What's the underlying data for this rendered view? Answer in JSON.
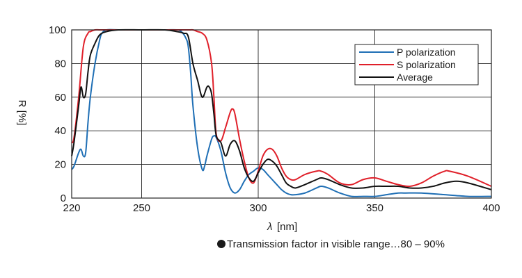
{
  "chart_data": {
    "type": "line",
    "xlabel_symbol": "λ",
    "xlabel_unit": "[nm]",
    "ylabel": "R [%]",
    "xlim": [
      220,
      400
    ],
    "ylim": [
      0,
      100
    ],
    "xticks": [
      220,
      250,
      300,
      350,
      400
    ],
    "yticks": [
      0,
      20,
      40,
      60,
      80,
      100
    ],
    "grid": true,
    "legend_position": "top-right",
    "colors": {
      "P polarization": "#1f6fb5",
      "S polarization": "#e0202a",
      "Average": "#111111",
      "grid": "#222222"
    },
    "series": [
      {
        "name": "P polarization",
        "x": [
          220,
          221,
          223,
          224,
          225,
          226,
          227,
          228,
          230,
          232,
          233,
          235,
          240,
          250,
          260,
          265,
          267,
          269,
          270,
          271,
          272,
          274,
          276,
          277,
          278,
          280,
          281,
          282,
          284,
          286,
          288,
          290,
          292,
          294,
          296,
          298,
          300,
          302,
          304,
          306,
          308,
          310,
          312,
          314,
          316,
          320,
          325,
          327,
          330,
          335,
          340,
          345,
          350,
          355,
          360,
          363,
          370,
          380,
          390,
          400
        ],
        "values": [
          17,
          19,
          27,
          29,
          25,
          27,
          45,
          60,
          80,
          94,
          98,
          100,
          100,
          100,
          100,
          100,
          99,
          95,
          90,
          75,
          55,
          30,
          17,
          19,
          25,
          35,
          37,
          36,
          28,
          15,
          6,
          3,
          5,
          10,
          14,
          16,
          18,
          17,
          14,
          11,
          8,
          5,
          3,
          2,
          2,
          3,
          6,
          7,
          6,
          3,
          1,
          1,
          1,
          2,
          3,
          3,
          3,
          2,
          1,
          1
        ]
      },
      {
        "name": "S polarization",
        "x": [
          220,
          221,
          223,
          225,
          227,
          228,
          230,
          232,
          235,
          240,
          250,
          260,
          270,
          272,
          274,
          276,
          278,
          280,
          281,
          282,
          284,
          286,
          288,
          289,
          290,
          292,
          294,
          296,
          298,
          300,
          302,
          304,
          306,
          308,
          310,
          312,
          314,
          316,
          320,
          325,
          327,
          330,
          335,
          340,
          345,
          350,
          355,
          360,
          365,
          370,
          375,
          380,
          382,
          390,
          400
        ],
        "values": [
          33,
          36,
          60,
          90,
          98,
          99,
          100,
          100,
          100,
          100,
          100,
          100,
          100,
          100,
          99,
          98,
          94,
          80,
          60,
          38,
          34,
          42,
          51,
          53,
          50,
          35,
          22,
          12,
          9,
          16,
          25,
          29,
          29,
          25,
          18,
          13,
          11,
          11,
          14,
          16,
          16,
          14,
          9,
          8,
          11,
          12,
          10,
          8,
          7,
          9,
          13,
          16,
          16,
          13,
          7
        ]
      },
      {
        "name": "Average",
        "x": [
          220,
          221,
          223,
          224,
          225,
          226,
          227,
          228,
          230,
          232,
          235,
          240,
          250,
          260,
          265,
          268,
          270,
          272,
          274,
          276,
          278,
          279,
          280,
          281,
          282,
          284,
          286,
          288,
          290,
          292,
          294,
          296,
          298,
          300,
          302,
          304,
          306,
          308,
          310,
          312,
          314,
          316,
          320,
          325,
          327,
          330,
          335,
          340,
          345,
          350,
          355,
          360,
          365,
          370,
          375,
          380,
          385,
          390,
          400
        ],
        "values": [
          25,
          33,
          55,
          66,
          60,
          62,
          75,
          85,
          92,
          97,
          99,
          100,
          100,
          100,
          99,
          98,
          96,
          80,
          70,
          60,
          66,
          66,
          62,
          50,
          37,
          33,
          25,
          32,
          34,
          28,
          18,
          12,
          10,
          15,
          20,
          23,
          22,
          19,
          14,
          9,
          7,
          6,
          8,
          11,
          12,
          11,
          8,
          6,
          6,
          7,
          7,
          7,
          6,
          6,
          7,
          9,
          10,
          9,
          5
        ]
      }
    ]
  },
  "note": {
    "text": "Transmission factor in visible range…80 – 90%"
  }
}
